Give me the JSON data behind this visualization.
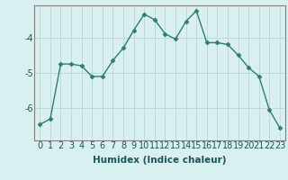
{
  "x": [
    0,
    1,
    2,
    3,
    4,
    5,
    6,
    7,
    8,
    9,
    10,
    11,
    12,
    13,
    14,
    15,
    16,
    17,
    18,
    19,
    20,
    21,
    22,
    23
  ],
  "y": [
    -6.45,
    -6.3,
    -4.75,
    -4.75,
    -4.8,
    -5.1,
    -5.1,
    -4.65,
    -4.3,
    -3.8,
    -3.35,
    -3.5,
    -3.9,
    -4.05,
    -3.55,
    -3.25,
    -4.15,
    -4.15,
    -4.2,
    -4.5,
    -4.85,
    -5.1,
    -6.05,
    -6.55
  ],
  "line_color": "#2e7d6e",
  "bg_color": "#d8f0f0",
  "plot_bg_color": "#d8f0f0",
  "grid_color": "#c0d8d8",
  "xlabel": "Humidex (Indice chaleur)",
  "yticks": [
    -6,
    -5,
    -4
  ],
  "ylim": [
    -6.9,
    -3.1
  ],
  "xlim": [
    -0.5,
    23.5
  ],
  "marker": "D",
  "marker_size": 2.5,
  "linewidth": 1.0,
  "xlabel_fontsize": 7.5,
  "tick_fontsize": 7
}
